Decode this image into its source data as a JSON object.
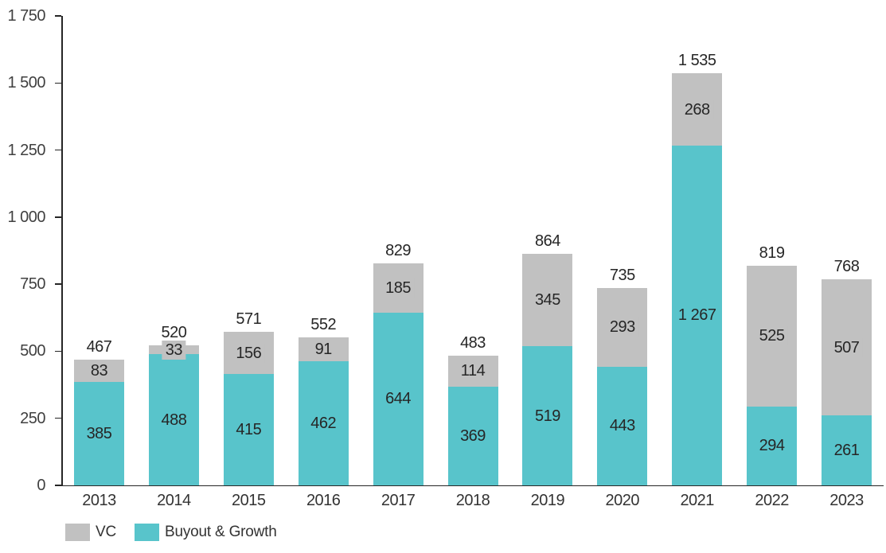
{
  "chart_data": {
    "type": "bar",
    "stacked": true,
    "title": "",
    "xlabel": "",
    "ylabel": "",
    "grid": false,
    "legend_position": "bottom-left",
    "categories": [
      "2013",
      "2014",
      "2015",
      "2016",
      "2017",
      "2018",
      "2019",
      "2020",
      "2021",
      "2022",
      "2023"
    ],
    "series": [
      {
        "name": "VC",
        "color": "#C1C1C1",
        "values": [
          83,
          33,
          156,
          91,
          185,
          114,
          345,
          293,
          268,
          525,
          507
        ]
      },
      {
        "name": "Buyout & Growth",
        "color": "#58C4CB",
        "values": [
          385,
          488,
          415,
          462,
          644,
          369,
          519,
          443,
          1267,
          294,
          261
        ]
      }
    ],
    "totals": [
      467,
      520,
      571,
      552,
      829,
      483,
      864,
      735,
      1535,
      819,
      768
    ],
    "y_axis": {
      "min": 0,
      "max": 1750,
      "step": 250,
      "tick_labels": [
        "0",
        "250",
        "500",
        "750",
        "1 000",
        "1 250",
        "1 500",
        "1 750"
      ]
    },
    "legend": [
      {
        "label": "VC",
        "color": "#C1C1C1"
      },
      {
        "label": "Buyout & Growth",
        "color": "#58C4CB"
      }
    ],
    "number_format": "space-thousands",
    "axis_color": "#262626",
    "text_color": "#333333"
  }
}
